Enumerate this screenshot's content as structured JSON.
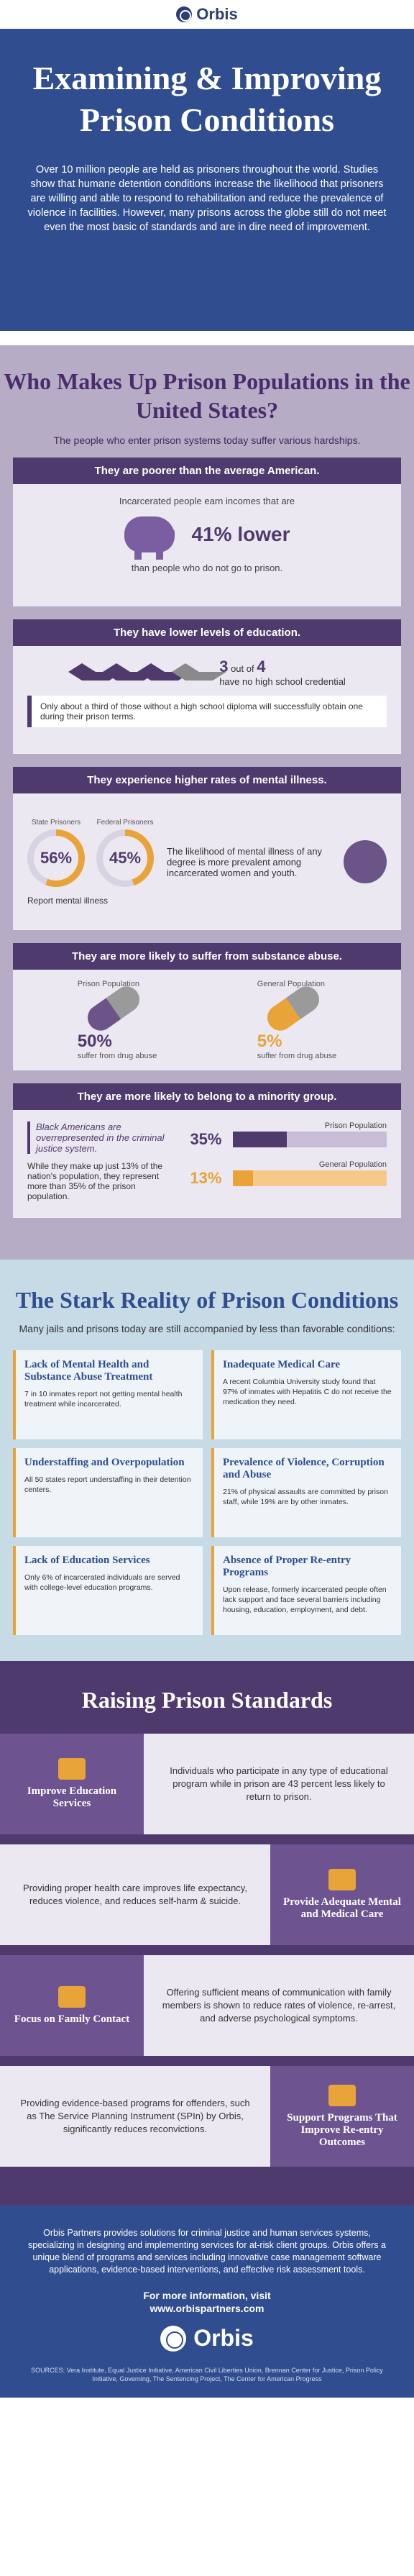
{
  "brand": "Orbis",
  "hero": {
    "title": "Examining & Improving Prison Conditions",
    "intro": "Over 10 million people are held as prisoners throughout the world. Studies show that humane detention conditions increase the likelihood that prisoners are willing and able to respond to rehabilitation and reduce the prevalence of violence in facilities. However, many prisons across the globe still do not meet even the most basic of standards and are in dire need of improvement."
  },
  "who": {
    "title": "Who Makes Up Prison Populations in the United States?",
    "subtitle": "The people who enter prison systems today suffer various hardships.",
    "poor": {
      "heading": "They are poorer than the average American.",
      "line1": "Incarcerated people earn incomes that are",
      "stat": "41% lower",
      "line2": "than people who do not go to prison."
    },
    "edu": {
      "heading": "They have lower levels of education.",
      "stat_num": "3",
      "stat_mid": "out of",
      "stat_den": "4",
      "stat_text": "have no high school credential",
      "note": "Only about a third of those without a high school diploma will successfully obtain one during their prison terms."
    },
    "mental": {
      "heading": "They experience higher rates of mental illness.",
      "state_label": "State Prisoners",
      "state_value": "56%",
      "federal_label": "Federal Prisoners",
      "federal_value": "45%",
      "report": "Report mental illness",
      "text": "The likelihood of mental illness of any degree is more prevalent among incarcerated women and youth."
    },
    "substance": {
      "heading": "They are more likely to suffer from substance abuse.",
      "prison_label": "Prison Population",
      "prison_value": "50%",
      "prison_text": "suffer from drug abuse",
      "general_label": "General Population",
      "general_value": "5%",
      "general_text": "suffer from drug abuse"
    },
    "minority": {
      "heading": "They are more likely to belong to a minority group.",
      "quote": "Black Americans are overrepresented in the criminal justice system.",
      "detail": "While they make up just 13% of the nation's population, they represent more than 35% of the prison population.",
      "prison_label": "Prison Population",
      "prison_value": "35%",
      "general_label": "General Population",
      "general_value": "13%"
    }
  },
  "stark": {
    "title": "The Stark Reality of Prison Conditions",
    "subtitle": "Many jails and prisons today are still accompanied by less than favorable conditions:",
    "cells": [
      {
        "title": "Lack of Mental Health and Substance Abuse Treatment",
        "text": "7 in 10 inmates report not getting mental health treatment while incarcerated."
      },
      {
        "title": "Inadequate Medical Care",
        "text": "A recent Columbia University study found that 97% of inmates with Hepatitis C do not receive the medication they need."
      },
      {
        "title": "Understaffing and Overpopulation",
        "text": "All 50 states report understaffing in their detention centers."
      },
      {
        "title": "Prevalence of Violence, Corruption and Abuse",
        "text": "21% of physical assaults are committed by prison staff, while 19% are by other inmates."
      },
      {
        "title": "Lack of Education Services",
        "text": "Only 6% of incarcerated individuals are served with college-level education programs."
      },
      {
        "title": "Absence of Proper Re-entry Programs",
        "text": "Upon release, formerly incarcerated people often lack support and face several barriers including housing, education, employment, and debt."
      }
    ]
  },
  "raise": {
    "title": "Raising Prison Standards",
    "rows": [
      {
        "label": "Improve Education Services",
        "text": "Individuals who participate in any type of educational program while in prison are 43 percent less likely to return to prison."
      },
      {
        "label": "Provide Adequate Mental and Medical Care",
        "text": "Providing proper health care improves life expectancy, reduces violence, and reduces self-harm & suicide."
      },
      {
        "label": "Focus on Family Contact",
        "text": "Offering sufficient means of communication with family members is shown to reduce rates of violence, re-arrest, and adverse psychological symptoms."
      },
      {
        "label": "Support Programs That Improve Re-entry Outcomes",
        "text": "Providing evidence-based programs for offenders, such as The Service Planning Instrument (SPIn) by Orbis, significantly reduces reconvictions."
      }
    ]
  },
  "footer": {
    "about": "Orbis Partners provides solutions for criminal justice and human services systems, specializing in designing and implementing services for at-risk client groups. Orbis offers a unique blend of programs and services including innovative case management software applications, evidence-based interventions, and effective risk assessment tools.",
    "more_label": "For more information, visit",
    "url": "www.orbispartners.com",
    "sources": "SOURCES: Vera Institute, Equal Justice Initiative, American Civil Liberties Union, Brennan Center for Justice, Prison Policy Initiative, Governing, The Sentencing Project, The Center for American Progress"
  },
  "colors": {
    "navy": "#2f4d8f",
    "purple": "#4f3a6d",
    "lavender": "#b6acc6",
    "orange": "#e8a339",
    "light_blue": "#c7dbe6"
  }
}
